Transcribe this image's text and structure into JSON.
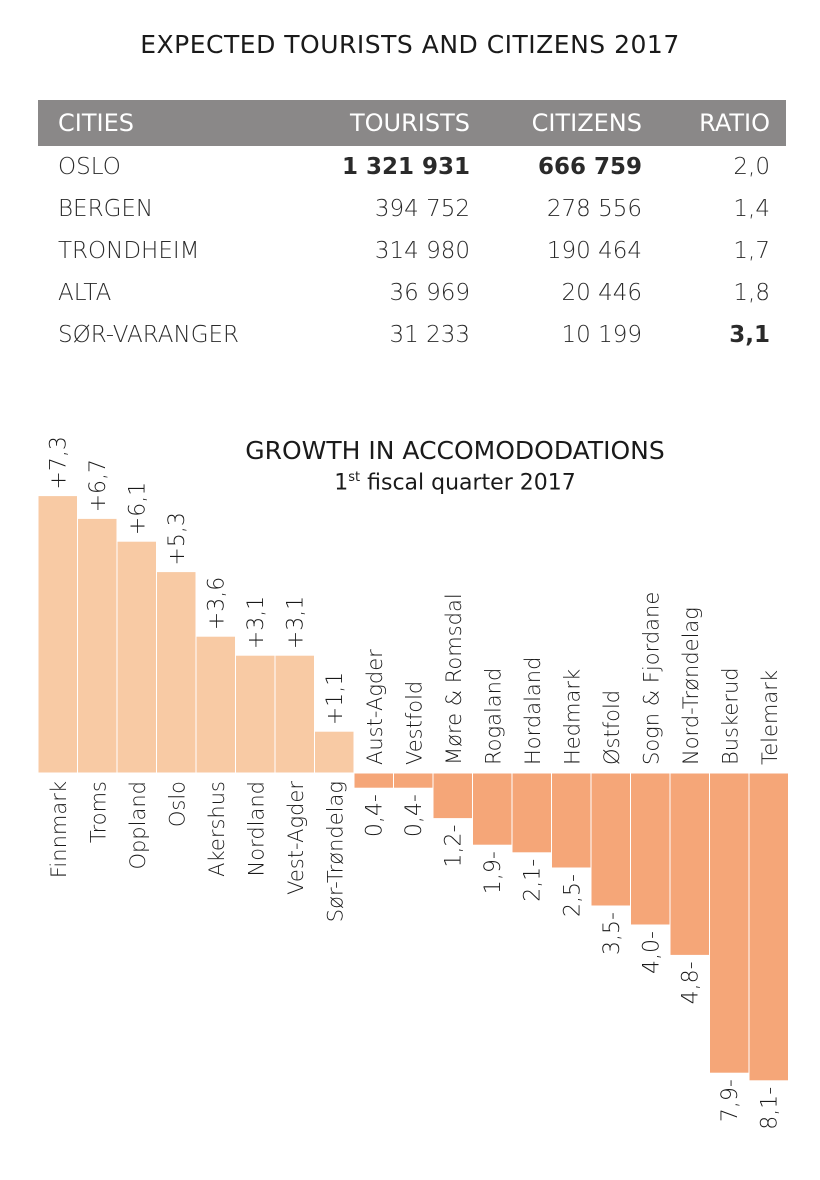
{
  "table": {
    "title": "EXPECTED  TOURISTS AND CITIZENS 2017",
    "headers": [
      "CITIES",
      "TOURISTS",
      "CITIZENS",
      "RATIO"
    ],
    "rows": [
      {
        "city": "OSLO",
        "tourists": "1 321 931",
        "citizens": "666 759",
        "ratio": "2,0",
        "bold_tourists": true,
        "bold_citizens": true,
        "bold_ratio": false
      },
      {
        "city": "BERGEN",
        "tourists": "394 752",
        "citizens": "278 556",
        "ratio": "1,4",
        "bold_tourists": false,
        "bold_citizens": false,
        "bold_ratio": false
      },
      {
        "city": "TRONDHEIM",
        "tourists": "314 980",
        "citizens": "190 464",
        "ratio": "1,7",
        "bold_tourists": false,
        "bold_citizens": false,
        "bold_ratio": false
      },
      {
        "city": "ALTA",
        "tourists": "36 969",
        "citizens": "20 446",
        "ratio": "1,8",
        "bold_tourists": false,
        "bold_citizens": false,
        "bold_ratio": false
      },
      {
        "city": "SØR-VARANGER",
        "tourists": "31 233",
        "citizens": "10 199",
        "ratio": "3,1",
        "bold_tourists": false,
        "bold_citizens": false,
        "bold_ratio": true
      }
    ],
    "colors": {
      "header_bg": "#8a8888",
      "header_text": "#ffffff"
    }
  },
  "chart_data": {
    "type": "bar",
    "title": "GROWTH IN ACCOMODODATIONS",
    "subtitle_prefix": "1",
    "subtitle_sup": "st",
    "subtitle_suffix": " fiscal quarter 2017",
    "categories": [
      "Finnmark",
      "Troms",
      "Oppland",
      "Oslo",
      "Akershus",
      "Nordland",
      "Vest-Agder",
      "Sør-Trøndelag",
      "Aust-Agder",
      "Vestfold",
      "Møre & Romsdal",
      "Rogaland",
      "Hordaland",
      "Hedmark",
      "Østfold",
      "Sogn & Fjordane",
      "Nord-Trøndelag",
      "Buskerud",
      "Telemark"
    ],
    "values": [
      7.3,
      6.7,
      6.1,
      5.3,
      3.6,
      3.1,
      3.1,
      1.1,
      -0.4,
      -0.4,
      -1.2,
      -1.9,
      -2.1,
      -2.5,
      -3.5,
      -4.0,
      -4.8,
      -7.9,
      -8.1
    ],
    "value_labels": [
      "+7,3",
      "+6,7",
      "+6,1",
      "+5,3",
      "+3,6",
      "+3,1",
      "+3,1",
      "+1,1",
      "0,4-",
      "0,4-",
      "1,2-",
      "1,9-",
      "2,1-",
      "2,5-",
      "3,5-",
      "4,0-",
      "4,8-",
      "7,9-",
      "8,1-"
    ],
    "colors": {
      "positive": "#f8caa4",
      "negative": "#f5a678",
      "edge": "#ffffff"
    }
  }
}
